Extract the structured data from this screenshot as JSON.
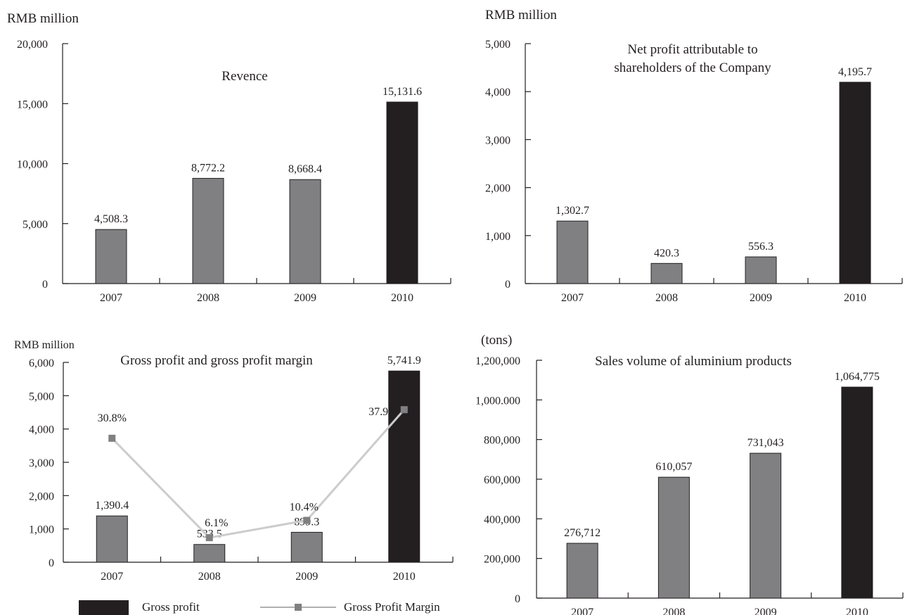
{
  "colors": {
    "bar": "#808083",
    "bar_highlight": "#231f20",
    "line": "#cccccc",
    "marker": "#808083",
    "axis": "#231f20"
  },
  "legend": {
    "bar_label": "Gross profit",
    "line_label": "Gross Profit Margin",
    "placement": "bottom"
  },
  "chart_data": [
    {
      "type": "bar",
      "title": "Revence",
      "unit_label": "RMB million",
      "categories": [
        "2007",
        "2008",
        "2009",
        "2010"
      ],
      "values": [
        4508.3,
        8772.2,
        8668.4,
        15131.6
      ],
      "value_labels": [
        "4,508.3",
        "8,772.2",
        "8,668.4",
        "15,131.6"
      ],
      "highlight_index": 3,
      "ylim": [
        0,
        20000
      ],
      "yticks": [
        0,
        5000,
        10000,
        15000,
        20000
      ],
      "ytick_labels": [
        "0",
        "5,000",
        "10,000",
        "15,000",
        "20,000"
      ],
      "grid": false
    },
    {
      "type": "bar",
      "title_lines": [
        "Net profit attributable to",
        "shareholders of the Company"
      ],
      "unit_label": "RMB million",
      "categories": [
        "2007",
        "2008",
        "2009",
        "2010"
      ],
      "values": [
        1302.7,
        420.3,
        556.3,
        4195.7
      ],
      "value_labels": [
        "1,302.7",
        "420.3",
        "556.3",
        "4,195.7"
      ],
      "highlight_index": 3,
      "ylim": [
        0,
        5000
      ],
      "yticks": [
        0,
        1000,
        2000,
        3000,
        4000,
        5000
      ],
      "ytick_labels": [
        "0",
        "1,000",
        "2,000",
        "3,000",
        "4,000",
        "5,000"
      ],
      "grid": false
    },
    {
      "type": "bar",
      "title": "Gross profit and gross profit margin",
      "unit_label": "RMB million",
      "categories": [
        "2007",
        "2008",
        "2009",
        "2010"
      ],
      "values": [
        1390.4,
        533.5,
        899.3,
        5741.9
      ],
      "value_labels": [
        "1,390.4",
        "533.5",
        "899.3",
        "5,741.9"
      ],
      "highlight_index": 3,
      "ylim": [
        0,
        6000
      ],
      "yticks": [
        0,
        1000,
        2000,
        3000,
        4000,
        5000,
        6000
      ],
      "ytick_labels": [
        "0",
        "1,000",
        "2,000",
        "3,000",
        "4,000",
        "5,000",
        "6,000"
      ],
      "margin_series": {
        "values": [
          30.8,
          6.1,
          10.4,
          37.9
        ],
        "labels": [
          "30.8%",
          "6.1%",
          "10.4%",
          "37.9%"
        ]
      },
      "grid": false
    },
    {
      "type": "bar",
      "title": "Sales volume of aluminium products",
      "unit_label": "(tons)",
      "categories": [
        "2007",
        "2008",
        "2009",
        "2010"
      ],
      "values": [
        276712,
        610057,
        731043,
        1064775
      ],
      "value_labels": [
        "276,712",
        "610,057",
        "731,043",
        "1,064,775"
      ],
      "highlight_index": 3,
      "ylim": [
        0,
        1200000
      ],
      "yticks": [
        0,
        200000,
        400000,
        600000,
        800000,
        1000000,
        1200000
      ],
      "ytick_labels": [
        "0",
        "200,000",
        "400,000",
        "600,000",
        "800,000",
        "1,000.000",
        "1,200,000"
      ],
      "grid": false
    }
  ]
}
